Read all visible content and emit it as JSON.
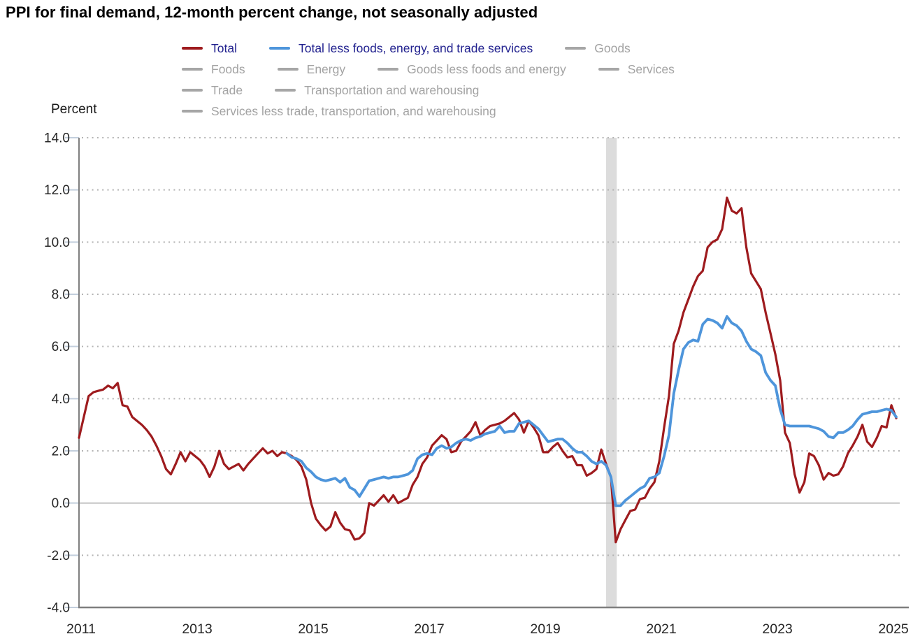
{
  "title": "PPI for final demand, 12-month percent change, not seasonally adjusted",
  "y_axis": {
    "label": "Percent",
    "ticks": [
      {
        "label": "14.0",
        "value": 14
      },
      {
        "label": "12.0",
        "value": 12
      },
      {
        "label": "10.0",
        "value": 10
      },
      {
        "label": "8.0",
        "value": 8
      },
      {
        "label": "6.0",
        "value": 6
      },
      {
        "label": "4.0",
        "value": 4
      },
      {
        "label": "2.0",
        "value": 2
      },
      {
        "label": "0.0",
        "value": 0
      },
      {
        "label": "-2.0",
        "value": -2
      },
      {
        "label": "-4.0",
        "value": -4
      }
    ]
  },
  "x_axis": {
    "ticks": [
      {
        "label": "2011",
        "month_index": 0
      },
      {
        "label": "2013",
        "month_index": 24
      },
      {
        "label": "2015",
        "month_index": 48
      },
      {
        "label": "2017",
        "month_index": 72
      },
      {
        "label": "2019",
        "month_index": 96
      },
      {
        "label": "2021",
        "month_index": 120
      },
      {
        "label": "2023",
        "month_index": 144
      },
      {
        "label": "2025",
        "month_index": 168
      }
    ]
  },
  "legend": {
    "rows": [
      [
        {
          "label": "Total",
          "swatch": "total",
          "active": true
        },
        {
          "label": "Total less foods, energy, and trade services",
          "swatch": "core",
          "active": true
        },
        {
          "label": "Goods",
          "swatch": "gray",
          "active": false
        }
      ],
      [
        {
          "label": "Foods",
          "swatch": "gray",
          "active": false
        },
        {
          "label": "Energy",
          "swatch": "gray",
          "active": false
        },
        {
          "label": "Goods less foods and energy",
          "swatch": "gray",
          "active": false
        },
        {
          "label": "Services",
          "swatch": "gray",
          "active": false
        }
      ],
      [
        {
          "label": "Trade",
          "swatch": "gray",
          "active": false
        },
        {
          "label": "Transportation and warehousing",
          "swatch": "gray",
          "active": false
        }
      ],
      [
        {
          "label": "Services less trade, transportation, and warehousing",
          "swatch": "gray",
          "active": false
        }
      ]
    ]
  },
  "colors": {
    "total_line": "#9e1b1e",
    "core_line": "#4e95db",
    "muted_swatch": "#a6a6a6",
    "legend_active_text": "#22228f",
    "legend_muted_text": "#a3a3a3",
    "axis": "#7f7f7f",
    "grid": "#b3b3b3",
    "zero_line": "#b3b3b3",
    "tick": "#c3cfdd",
    "recession_band": "#dcdcdc",
    "label_text": "#262626"
  },
  "chart_data": {
    "type": "line",
    "title": "PPI for final demand, 12-month percent change, not seasonally adjusted",
    "ylabel": "Percent",
    "ylim": [
      -4,
      14
    ],
    "grid": "dotted horizontal, solid zero line",
    "legend_position": "top",
    "x_monthly_start": "2011-01",
    "x_monthly_end": "2025-02",
    "months_total": 170,
    "recession_band_months": {
      "start_index": 109,
      "end_index": 111.2,
      "note": "Feb-Apr 2020 shading"
    },
    "series": [
      {
        "name": "Total",
        "values": [
          2.5,
          3.3,
          4.1,
          4.25,
          4.3,
          4.35,
          4.5,
          4.4,
          4.6,
          3.75,
          3.7,
          3.3,
          3.15,
          3.0,
          2.8,
          2.55,
          2.2,
          1.8,
          1.3,
          1.1,
          1.5,
          1.95,
          1.6,
          1.95,
          1.8,
          1.65,
          1.4,
          1.0,
          1.4,
          2.0,
          1.5,
          1.3,
          1.4,
          1.5,
          1.25,
          1.5,
          1.7,
          1.9,
          2.1,
          1.9,
          2.0,
          1.8,
          1.95,
          1.9,
          1.8,
          1.65,
          1.4,
          0.9,
          0.0,
          -0.6,
          -0.85,
          -1.05,
          -0.9,
          -0.35,
          -0.75,
          -1.0,
          -1.05,
          -1.4,
          -1.35,
          -1.15,
          0.0,
          -0.1,
          0.1,
          0.3,
          0.05,
          0.3,
          0.0,
          0.1,
          0.2,
          0.7,
          1.0,
          1.5,
          1.75,
          2.2,
          2.4,
          2.6,
          2.45,
          1.95,
          2.0,
          2.35,
          2.55,
          2.75,
          3.1,
          2.6,
          2.8,
          2.95,
          3.0,
          3.05,
          3.15,
          3.3,
          3.45,
          3.2,
          2.7,
          3.15,
          2.9,
          2.6,
          1.95,
          1.95,
          2.15,
          2.3,
          2.0,
          1.75,
          1.8,
          1.45,
          1.45,
          1.05,
          1.15,
          1.3,
          2.05,
          1.5,
          1.0,
          -1.5,
          -1.0,
          -0.65,
          -0.3,
          -0.25,
          0.15,
          0.2,
          0.55,
          0.8,
          1.6,
          2.9,
          4.1,
          6.1,
          6.6,
          7.3,
          7.8,
          8.3,
          8.7,
          8.9,
          9.8,
          10.0,
          10.1,
          10.5,
          11.7,
          11.2,
          11.1,
          11.3,
          9.8,
          8.8,
          8.5,
          8.2,
          7.3,
          6.5,
          5.7,
          4.7,
          2.7,
          2.3,
          1.1,
          0.4,
          0.8,
          1.9,
          1.8,
          1.45,
          0.9,
          1.15,
          1.05,
          1.1,
          1.4,
          1.9,
          2.2,
          2.55,
          3.0,
          2.35,
          2.15,
          2.5,
          2.95,
          2.9,
          3.75,
          3.25
        ]
      },
      {
        "name": "Total less foods, energy, and trade services",
        "values": [
          null,
          null,
          null,
          null,
          null,
          null,
          null,
          null,
          null,
          null,
          null,
          null,
          null,
          null,
          null,
          null,
          null,
          null,
          null,
          null,
          null,
          null,
          null,
          null,
          null,
          null,
          null,
          null,
          null,
          null,
          null,
          null,
          null,
          null,
          null,
          null,
          null,
          null,
          null,
          null,
          null,
          null,
          null,
          1.9,
          1.75,
          1.7,
          1.6,
          1.35,
          1.2,
          1.0,
          0.9,
          0.85,
          0.9,
          0.95,
          0.8,
          0.95,
          0.6,
          0.5,
          0.25,
          0.55,
          0.85,
          0.9,
          0.95,
          1.0,
          0.95,
          1.0,
          1.0,
          1.05,
          1.1,
          1.25,
          1.7,
          1.85,
          1.9,
          1.85,
          2.1,
          2.2,
          2.1,
          2.15,
          2.3,
          2.4,
          2.45,
          2.4,
          2.5,
          2.55,
          2.65,
          2.7,
          2.75,
          2.95,
          2.7,
          2.75,
          2.75,
          3.05,
          3.1,
          3.15,
          3.0,
          2.85,
          2.6,
          2.35,
          2.4,
          2.45,
          2.45,
          2.3,
          2.1,
          1.95,
          1.95,
          1.8,
          1.6,
          1.5,
          1.6,
          1.45,
          1.0,
          -0.1,
          -0.1,
          0.1,
          0.25,
          0.4,
          0.55,
          0.65,
          0.95,
          1.0,
          1.15,
          1.8,
          2.6,
          4.2,
          5.1,
          5.9,
          6.15,
          6.25,
          6.2,
          6.85,
          7.05,
          7.0,
          6.9,
          6.7,
          7.15,
          6.9,
          6.8,
          6.6,
          6.2,
          5.9,
          5.8,
          5.65,
          5.0,
          4.7,
          4.5,
          3.6,
          3.0,
          2.95,
          2.95,
          2.95,
          2.95,
          2.95,
          2.9,
          2.85,
          2.75,
          2.55,
          2.5,
          2.7,
          2.7,
          2.8,
          2.95,
          3.2,
          3.4,
          3.45,
          3.5,
          3.5,
          3.55,
          3.6,
          3.55,
          3.3
        ]
      }
    ],
    "inactive_series_names": [
      "Goods",
      "Foods",
      "Energy",
      "Goods less foods and energy",
      "Services",
      "Trade",
      "Transportation and warehousing",
      "Services less trade, transportation, and warehousing"
    ]
  }
}
